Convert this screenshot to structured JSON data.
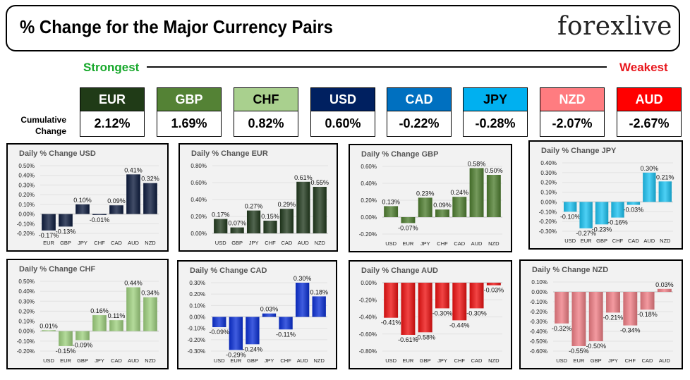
{
  "header": {
    "title": "% Change for the Major Currency Pairs",
    "brand": "forexlive"
  },
  "ranking": {
    "strongest_label": "Strongest",
    "weakest_label": "Weakest",
    "cumulative_label_line1": "Cumulative",
    "cumulative_label_line2": "Change",
    "currencies": [
      {
        "code": "EUR",
        "value": "2.12%",
        "bg": "#203b17",
        "fg": "#ffffff"
      },
      {
        "code": "GBP",
        "value": "1.69%",
        "bg": "#548235",
        "fg": "#ffffff"
      },
      {
        "code": "CHF",
        "value": "0.82%",
        "bg": "#a9d08e",
        "fg": "#000000"
      },
      {
        "code": "USD",
        "value": "0.60%",
        "bg": "#002060",
        "fg": "#ffffff"
      },
      {
        "code": "CAD",
        "value": "-0.22%",
        "bg": "#0070c0",
        "fg": "#ffffff"
      },
      {
        "code": "JPY",
        "value": "-0.28%",
        "bg": "#00b0f0",
        "fg": "#000000"
      },
      {
        "code": "NZD",
        "value": "-2.07%",
        "bg": "#ff7c80",
        "fg": "#ffffff"
      },
      {
        "code": "AUD",
        "value": "-2.67%",
        "bg": "#ff0000",
        "fg": "#ffffff"
      }
    ]
  },
  "chart_data": [
    {
      "type": "bar",
      "title": "Daily % Change USD",
      "categories": [
        "EUR",
        "GBP",
        "JPY",
        "CHF",
        "CAD",
        "AUD",
        "NZD"
      ],
      "values": [
        -0.17,
        -0.13,
        0.1,
        -0.01,
        0.09,
        0.41,
        0.32
      ],
      "ylim": [
        -0.2,
        0.5
      ],
      "ticks": [
        -0.2,
        -0.1,
        0.0,
        0.1,
        0.2,
        0.3,
        0.4,
        0.5
      ],
      "color": "#0d1b3e",
      "tick_decimals": 2,
      "grid": true,
      "legend": "none"
    },
    {
      "type": "bar",
      "title": "Daily % Change EUR",
      "categories": [
        "USD",
        "GBP",
        "JPY",
        "CHF",
        "CAD",
        "AUD",
        "NZD"
      ],
      "values": [
        0.17,
        0.07,
        0.27,
        0.15,
        0.29,
        0.61,
        0.55
      ],
      "ylim": [
        0.0,
        0.8
      ],
      "ticks": [
        0.0,
        0.2,
        0.4,
        0.6,
        0.8
      ],
      "color": "#213a1d",
      "tick_decimals": 2,
      "grid": true,
      "legend": "none"
    },
    {
      "type": "bar",
      "title": "Daily % Change GBP",
      "categories": [
        "USD",
        "EUR",
        "JPY",
        "CHF",
        "CAD",
        "AUD",
        "NZD"
      ],
      "values": [
        0.13,
        -0.07,
        0.23,
        0.09,
        0.24,
        0.58,
        0.5
      ],
      "ylim": [
        -0.2,
        0.6
      ],
      "ticks": [
        -0.2,
        0.0,
        0.2,
        0.4,
        0.6
      ],
      "color": "#4e7d2f",
      "tick_decimals": 2,
      "grid": true,
      "legend": "none"
    },
    {
      "type": "bar",
      "title": "Daily % Change JPY",
      "categories": [
        "USD",
        "EUR",
        "GBP",
        "CHF",
        "CAD",
        "AUD",
        "NZD"
      ],
      "values": [
        -0.1,
        -0.27,
        -0.23,
        -0.16,
        -0.03,
        0.3,
        0.21
      ],
      "ylim": [
        -0.3,
        0.4
      ],
      "ticks": [
        -0.3,
        -0.2,
        -0.1,
        0.0,
        0.1,
        0.2,
        0.3,
        0.4
      ],
      "color": "#1cc3f2",
      "tick_decimals": 2,
      "grid": true,
      "legend": "none"
    },
    {
      "type": "bar",
      "title": "Daily % Change CHF",
      "categories": [
        "USD",
        "EUR",
        "GBP",
        "JPY",
        "CAD",
        "AUD",
        "NZD"
      ],
      "values": [
        0.01,
        -0.15,
        -0.09,
        0.16,
        0.11,
        0.44,
        0.34
      ],
      "ylim": [
        -0.2,
        0.5
      ],
      "ticks": [
        -0.2,
        -0.1,
        0.0,
        0.1,
        0.2,
        0.3,
        0.4,
        0.5
      ],
      "color": "#9fd17f",
      "tick_decimals": 2,
      "grid": true,
      "legend": "none"
    },
    {
      "type": "bar",
      "title": "Daily % Change CAD",
      "categories": [
        "USD",
        "EUR",
        "GBP",
        "JPY",
        "CHF",
        "AUD",
        "NZD"
      ],
      "values": [
        -0.09,
        -0.29,
        -0.24,
        0.03,
        -0.11,
        0.3,
        0.18
      ],
      "ylim": [
        -0.3,
        0.3
      ],
      "ticks": [
        -0.3,
        -0.2,
        -0.1,
        0.0,
        0.1,
        0.2,
        0.3
      ],
      "color": "#0a2fd6",
      "tick_decimals": 2,
      "grid": true,
      "legend": "none"
    },
    {
      "type": "bar",
      "title": "Daily % Change AUD",
      "categories": [
        "USD",
        "EUR",
        "GBP",
        "JPY",
        "CHF",
        "CAD",
        "NZD"
      ],
      "values": [
        -0.41,
        -0.61,
        -0.58,
        -0.3,
        -0.44,
        -0.3,
        -0.03
      ],
      "ylim": [
        -0.8,
        0.0
      ],
      "ticks": [
        -0.8,
        -0.6,
        -0.4,
        -0.2,
        0.0
      ],
      "color": "#ee1111",
      "tick_decimals": 2,
      "grid": true,
      "legend": "none"
    },
    {
      "type": "bar",
      "title": "Daily % Change NZD",
      "categories": [
        "USD",
        "EUR",
        "GBP",
        "JPY",
        "CHF",
        "CAD",
        "AUD"
      ],
      "values": [
        -0.32,
        -0.55,
        -0.5,
        -0.21,
        -0.34,
        -0.18,
        0.03
      ],
      "ylim": [
        -0.6,
        0.1
      ],
      "ticks": [
        -0.6,
        -0.5,
        -0.4,
        -0.3,
        -0.2,
        -0.1,
        0.0,
        0.1
      ],
      "color": "#ef7e85",
      "tick_decimals": 2,
      "grid": true,
      "legend": "none"
    }
  ]
}
